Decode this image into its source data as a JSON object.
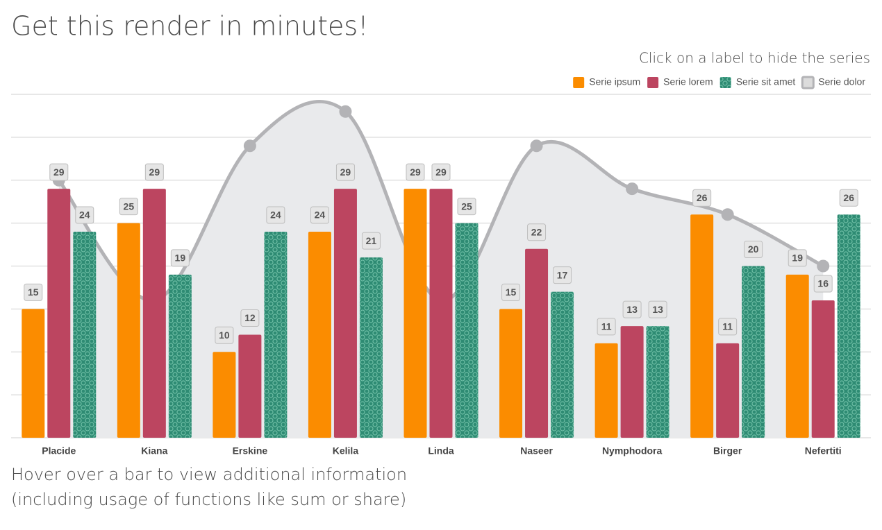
{
  "chart_data": {
    "type": "bar",
    "title": "Get this render in minutes!",
    "subtitle": "Click on a label to hide the series",
    "notes": [
      "Hover over a bar to view additional information",
      "(including usage of functions like sum or share)"
    ],
    "categories": [
      "Placide",
      "Kiana",
      "Erskine",
      "Kelila",
      "Linda",
      "Naseer",
      "Nymphodora",
      "Birger",
      "Nefertiti"
    ],
    "series": [
      {
        "name": "Serie ipsum",
        "color": "#fb8c00",
        "type": "bar",
        "values": [
          15,
          25,
          10,
          24,
          29,
          15,
          11,
          26,
          19
        ]
      },
      {
        "name": "Serie lorem",
        "color": "#bc4560",
        "type": "bar",
        "values": [
          29,
          29,
          12,
          29,
          29,
          22,
          13,
          11,
          16
        ]
      },
      {
        "name": "Serie sit amet",
        "color": "#2e8b73",
        "type": "bar",
        "pattern": "dots",
        "values": [
          24,
          19,
          24,
          21,
          25,
          17,
          13,
          20,
          26
        ]
      },
      {
        "name": "Serie dolor",
        "color": "#b3b3b6",
        "type": "area",
        "values": [
          30,
          16,
          34,
          38,
          16,
          34,
          29,
          26,
          20
        ]
      }
    ],
    "ylim": [
      0,
      40
    ],
    "yticks": [
      0,
      5,
      10,
      15,
      20,
      25,
      30,
      35,
      40
    ],
    "grid": true,
    "legend": "top-right"
  }
}
